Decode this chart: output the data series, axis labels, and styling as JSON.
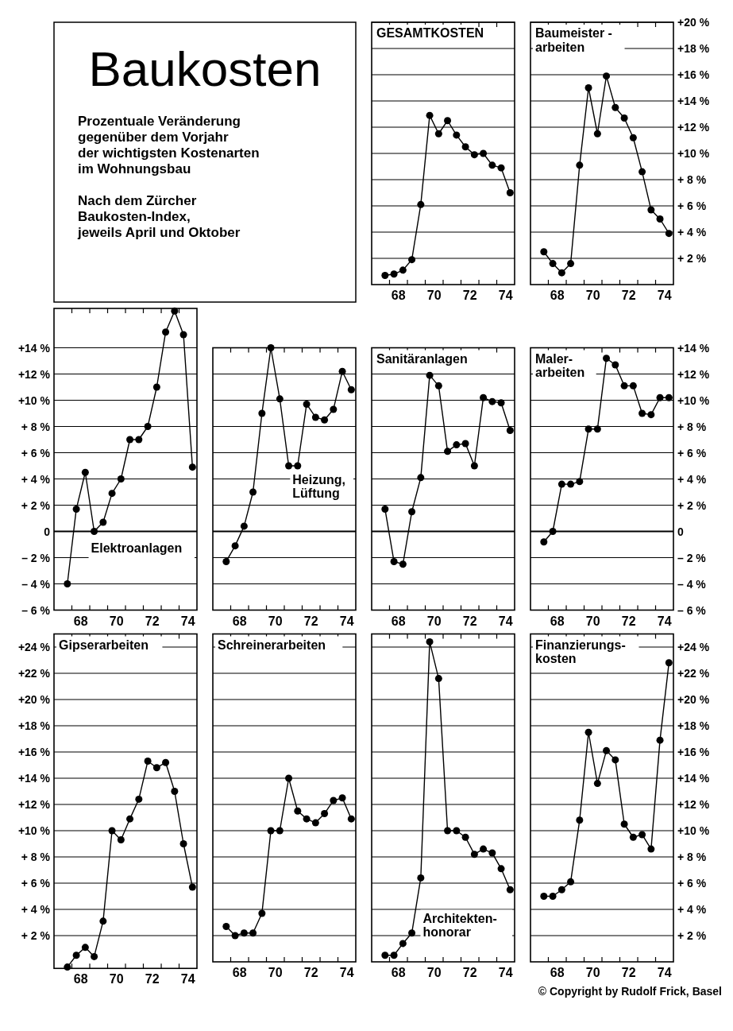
{
  "chart_data": [
    {
      "type": "other",
      "title": "Baukosten",
      "subtitle": "Prozentuale Veränderung\ngegenüber dem Vorjahr\nder wichtigsten Kostenarten\nim Wohnungsbau",
      "annotations": [
        "Nach dem Zürcher\nBaukosten-Index,\njeweils April und Oktober"
      ]
    },
    {
      "type": "line",
      "title": "GESAMTKOSTEN",
      "marker": "circle",
      "grid": "y",
      "tick_labels": "x",
      "x": [
        "1967-10",
        "1968-04",
        "1968-10",
        "1969-04",
        "1969-10",
        "1970-04",
        "1970-10",
        "1971-04",
        "1971-10",
        "1972-04",
        "1972-10",
        "1973-04",
        "1973-10",
        "1974-04",
        "1974-10"
      ],
      "xlim": [
        "1967",
        "1975"
      ],
      "xticks": [
        {
          "value": "1968",
          "label": null
        },
        {
          "value": "1968-07",
          "label": "68"
        },
        {
          "value": "1969",
          "label": null
        },
        {
          "value": "1970",
          "label": null
        },
        {
          "value": "1970-07",
          "label": "70"
        },
        {
          "value": "1971",
          "label": null
        },
        {
          "value": "1972",
          "label": null
        },
        {
          "value": "1972-07",
          "label": "72"
        },
        {
          "value": "1973",
          "label": null
        },
        {
          "value": "1974",
          "label": null
        },
        {
          "value": "1974-07",
          "label": "74"
        }
      ],
      "ylim": [
        0,
        20
      ],
      "yticks": [
        2,
        4,
        6,
        8,
        10,
        12,
        14,
        16,
        18,
        20
      ],
      "series": [
        {
          "color": "#000000",
          "values": [
            0.7,
            0.8,
            1.1,
            1.9,
            6.1,
            12.9,
            11.5,
            12.5,
            11.4,
            10.5,
            9.9,
            10.0,
            9.1,
            8.9,
            7.0
          ]
        }
      ]
    },
    {
      "type": "line",
      "title": "Baumeister -\narbeiten",
      "marker": "circle",
      "grid": "y",
      "x": [
        "1967-10",
        "1968-04",
        "1968-10",
        "1969-04",
        "1969-10",
        "1970-04",
        "1970-10",
        "1971-04",
        "1971-10",
        "1972-04",
        "1972-10",
        "1973-04",
        "1973-10",
        "1974-04",
        "1974-10"
      ],
      "xlim": [
        "1967",
        "1975"
      ],
      "xticks": [
        {
          "value": "1968",
          "label": null
        },
        {
          "value": "1968-07",
          "label": "68"
        },
        {
          "value": "1969",
          "label": null
        },
        {
          "value": "1970",
          "label": null
        },
        {
          "value": "1970-07",
          "label": "70"
        },
        {
          "value": "1971",
          "label": null
        },
        {
          "value": "1972",
          "label": null
        },
        {
          "value": "1972-07",
          "label": "72"
        },
        {
          "value": "1973",
          "label": null
        },
        {
          "value": "1974",
          "label": null
        },
        {
          "value": "1974-07",
          "label": "74"
        }
      ],
      "ylim": [
        0,
        20
      ],
      "yticks": [
        {
          "value": 2,
          "label": "+ 2 %"
        },
        {
          "value": 4,
          "label": "+ 4 %"
        },
        {
          "value": 6,
          "label": "+ 6 %"
        },
        {
          "value": 8,
          "label": "+ 8 %"
        },
        {
          "value": 10,
          "label": "+10 %"
        },
        {
          "value": 12,
          "label": "+12 %"
        },
        {
          "value": 14,
          "label": "+14 %"
        },
        {
          "value": 16,
          "label": "+16 %"
        },
        {
          "value": 18,
          "label": "+18 %"
        },
        {
          "value": 20,
          "label": "+20 %"
        }
      ],
      "series": [
        {
          "color": "#000000",
          "values": [
            2.5,
            1.6,
            0.9,
            1.6,
            9.1,
            15.0,
            11.5,
            15.9,
            13.5,
            12.7,
            11.2,
            8.6,
            5.7,
            5.0,
            3.9
          ]
        }
      ]
    },
    {
      "type": "line",
      "title": "Elektroanlagen",
      "marker": "circle",
      "grid": "y",
      "x": [
        "1967-10",
        "1968-04",
        "1968-10",
        "1969-04",
        "1969-10",
        "1970-04",
        "1970-10",
        "1971-04",
        "1971-10",
        "1972-04",
        "1972-10",
        "1973-04",
        "1973-10",
        "1974-04",
        "1974-10"
      ],
      "xlim": [
        "1967",
        "1975"
      ],
      "xticks": [
        {
          "value": "1968",
          "label": null
        },
        {
          "value": "1968-07",
          "label": "68"
        },
        {
          "value": "1969",
          "label": null
        },
        {
          "value": "1970",
          "label": null
        },
        {
          "value": "1970-07",
          "label": "70"
        },
        {
          "value": "1971",
          "label": null
        },
        {
          "value": "1972",
          "label": null
        },
        {
          "value": "1972-07",
          "label": "72"
        },
        {
          "value": "1973",
          "label": null
        },
        {
          "value": "1974",
          "label": null
        },
        {
          "value": "1974-07",
          "label": "74"
        }
      ],
      "ylim": [
        -6,
        17
      ],
      "yticks": [
        {
          "value": -6,
          "label": "– 6 %"
        },
        {
          "value": -4,
          "label": "– 4 %"
        },
        {
          "value": -2,
          "label": "– 2 %"
        },
        0,
        {
          "value": 2,
          "label": "+ 2 %"
        },
        {
          "value": 4,
          "label": "+ 4 %"
        },
        {
          "value": 6,
          "label": "+ 6 %"
        },
        {
          "value": 8,
          "label": "+ 8 %"
        },
        {
          "value": 10,
          "label": "+10 %"
        },
        {
          "value": 12,
          "label": "+12 %"
        },
        {
          "value": 14,
          "label": "+14 %"
        }
      ],
      "series": [
        {
          "color": "#000000",
          "values": [
            -4.0,
            1.7,
            4.5,
            0.0,
            0.7,
            2.9,
            4.0,
            7.0,
            7.0,
            8.0,
            11.0,
            15.2,
            16.8,
            15.0,
            4.9
          ]
        }
      ]
    },
    {
      "type": "line",
      "title": "Heizung,\nLüftung",
      "marker": "circle",
      "grid": "y",
      "tick_labels": "x",
      "x": [
        "1967-10",
        "1968-04",
        "1968-10",
        "1969-04",
        "1969-10",
        "1970-04",
        "1970-10",
        "1971-04",
        "1971-10",
        "1972-04",
        "1972-10",
        "1973-04",
        "1973-10",
        "1974-04",
        "1974-10"
      ],
      "xlim": [
        "1967",
        "1975"
      ],
      "xticks": [
        {
          "value": "1968",
          "label": null
        },
        {
          "value": "1968-07",
          "label": "68"
        },
        {
          "value": "1969",
          "label": null
        },
        {
          "value": "1970",
          "label": null
        },
        {
          "value": "1970-07",
          "label": "70"
        },
        {
          "value": "1971",
          "label": null
        },
        {
          "value": "1972",
          "label": null
        },
        {
          "value": "1972-07",
          "label": "72"
        },
        {
          "value": "1973",
          "label": null
        },
        {
          "value": "1974",
          "label": null
        },
        {
          "value": "1974-07",
          "label": "74"
        }
      ],
      "ylim": [
        -6,
        14
      ],
      "yticks": [
        -6,
        -4,
        -2,
        0,
        2,
        4,
        6,
        8,
        10,
        12,
        14
      ],
      "series": [
        {
          "color": "#000000",
          "values": [
            -2.3,
            -1.1,
            0.4,
            3.0,
            9.0,
            14.0,
            10.1,
            5.0,
            5.0,
            9.7,
            8.7,
            8.5,
            9.3,
            12.2,
            10.8
          ]
        }
      ]
    },
    {
      "type": "line",
      "title": "Sanitäranlagen",
      "marker": "circle",
      "grid": "y",
      "tick_labels": "x",
      "x": [
        "1967-10",
        "1968-04",
        "1968-10",
        "1969-04",
        "1969-10",
        "1970-04",
        "1970-10",
        "1971-04",
        "1971-10",
        "1972-04",
        "1972-10",
        "1973-04",
        "1973-10",
        "1974-04",
        "1974-10"
      ],
      "xlim": [
        "1967",
        "1975"
      ],
      "xticks": [
        {
          "value": "1968",
          "label": null
        },
        {
          "value": "1968-07",
          "label": "68"
        },
        {
          "value": "1969",
          "label": null
        },
        {
          "value": "1970",
          "label": null
        },
        {
          "value": "1970-07",
          "label": "70"
        },
        {
          "value": "1971",
          "label": null
        },
        {
          "value": "1972",
          "label": null
        },
        {
          "value": "1972-07",
          "label": "72"
        },
        {
          "value": "1973",
          "label": null
        },
        {
          "value": "1974",
          "label": null
        },
        {
          "value": "1974-07",
          "label": "74"
        }
      ],
      "ylim": [
        -6,
        14
      ],
      "yticks": [
        -6,
        -4,
        -2,
        0,
        2,
        4,
        6,
        8,
        10,
        12,
        14
      ],
      "series": [
        {
          "color": "#000000",
          "values": [
            1.7,
            -2.3,
            -2.5,
            1.5,
            4.1,
            11.9,
            11.1,
            6.1,
            6.6,
            6.7,
            5.0,
            10.2,
            9.9,
            9.8,
            7.7
          ]
        }
      ]
    },
    {
      "type": "line",
      "title": "Maler-\narbeiten",
      "marker": "circle",
      "grid": "y",
      "x": [
        "1967-10",
        "1968-04",
        "1968-10",
        "1969-04",
        "1969-10",
        "1970-04",
        "1970-10",
        "1971-04",
        "1971-10",
        "1972-04",
        "1972-10",
        "1973-04",
        "1973-10",
        "1974-04",
        "1974-10"
      ],
      "xlim": [
        "1967",
        "1975"
      ],
      "xticks": [
        {
          "value": "1968",
          "label": null
        },
        {
          "value": "1968-07",
          "label": "68"
        },
        {
          "value": "1969",
          "label": null
        },
        {
          "value": "1970",
          "label": null
        },
        {
          "value": "1970-07",
          "label": "70"
        },
        {
          "value": "1971",
          "label": null
        },
        {
          "value": "1972",
          "label": null
        },
        {
          "value": "1972-07",
          "label": "72"
        },
        {
          "value": "1973",
          "label": null
        },
        {
          "value": "1974",
          "label": null
        },
        {
          "value": "1974-07",
          "label": "74"
        }
      ],
      "ylim": [
        -6,
        14
      ],
      "yticks": [
        {
          "value": -6,
          "label": "– 6 %"
        },
        {
          "value": -4,
          "label": "– 4 %"
        },
        {
          "value": -2,
          "label": "– 2 %"
        },
        0,
        {
          "value": 2,
          "label": "+ 2 %"
        },
        {
          "value": 4,
          "label": "+ 4 %"
        },
        {
          "value": 6,
          "label": "+ 6 %"
        },
        {
          "value": 8,
          "label": "+ 8 %"
        },
        {
          "value": 10,
          "label": "+10 %"
        },
        {
          "value": 12,
          "label": "+12 %"
        },
        {
          "value": 14,
          "label": "+14 %"
        }
      ],
      "series": [
        {
          "color": "#000000",
          "values": [
            -0.8,
            0.0,
            3.6,
            3.6,
            3.8,
            7.8,
            7.8,
            13.2,
            12.7,
            11.1,
            11.1,
            9.0,
            8.9,
            10.2,
            10.2
          ]
        }
      ]
    },
    {
      "type": "line",
      "title": "Gipserarbeiten",
      "marker": "circle",
      "grid": "y",
      "x": [
        "1967-10",
        "1968-04",
        "1968-10",
        "1969-04",
        "1969-10",
        "1970-04",
        "1970-10",
        "1971-04",
        "1971-10",
        "1972-04",
        "1972-10",
        "1973-04",
        "1973-10",
        "1974-04",
        "1974-10"
      ],
      "xlim": [
        "1967",
        "1975"
      ],
      "xticks": [
        {
          "value": "1968",
          "label": null
        },
        {
          "value": "1968-07",
          "label": "68"
        },
        {
          "value": "1969",
          "label": null
        },
        {
          "value": "1970",
          "label": null
        },
        {
          "value": "1970-07",
          "label": "70"
        },
        {
          "value": "1971",
          "label": null
        },
        {
          "value": "1972",
          "label": null
        },
        {
          "value": "1972-07",
          "label": "72"
        },
        {
          "value": "1973",
          "label": null
        },
        {
          "value": "1974",
          "label": null
        },
        {
          "value": "1974-07",
          "label": "74"
        }
      ],
      "ylim": [
        -0.5,
        25
      ],
      "yticks": [
        {
          "value": 2,
          "label": "+ 2 %"
        },
        {
          "value": 4,
          "label": "+ 4 %"
        },
        {
          "value": 6,
          "label": "+ 6 %"
        },
        {
          "value": 8,
          "label": "+ 8 %"
        },
        {
          "value": 10,
          "label": "+10 %"
        },
        {
          "value": 12,
          "label": "+12 %"
        },
        {
          "value": 14,
          "label": "+14 %"
        },
        {
          "value": 16,
          "label": "+16 %"
        },
        {
          "value": 18,
          "label": "+18 %"
        },
        {
          "value": 20,
          "label": "+20 %"
        },
        {
          "value": 22,
          "label": "+22 %"
        },
        {
          "value": 24,
          "label": "+24 %"
        }
      ],
      "series": [
        {
          "color": "#000000",
          "values": [
            -0.4,
            0.5,
            1.1,
            0.4,
            3.1,
            10.0,
            9.3,
            10.9,
            12.4,
            15.3,
            14.8,
            15.2,
            13.0,
            9.0,
            5.7
          ]
        }
      ]
    },
    {
      "type": "line",
      "title": "Schreinerarbeiten",
      "marker": "circle",
      "grid": "y",
      "tick_labels": "x",
      "x": [
        "1967-10",
        "1968-04",
        "1968-10",
        "1969-04",
        "1969-10",
        "1970-04",
        "1970-10",
        "1971-04",
        "1971-10",
        "1972-04",
        "1972-10",
        "1973-04",
        "1973-10",
        "1974-04",
        "1974-10"
      ],
      "xlim": [
        "1967",
        "1975"
      ],
      "xticks": [
        {
          "value": "1968",
          "label": null
        },
        {
          "value": "1968-07",
          "label": "68"
        },
        {
          "value": "1969",
          "label": null
        },
        {
          "value": "1970",
          "label": null
        },
        {
          "value": "1970-07",
          "label": "70"
        },
        {
          "value": "1971",
          "label": null
        },
        {
          "value": "1972",
          "label": null
        },
        {
          "value": "1972-07",
          "label": "72"
        },
        {
          "value": "1973",
          "label": null
        },
        {
          "value": "1974",
          "label": null
        },
        {
          "value": "1974-07",
          "label": "74"
        }
      ],
      "ylim": [
        0,
        25
      ],
      "yticks": [
        2,
        4,
        6,
        8,
        10,
        12,
        14,
        16,
        18,
        20,
        22,
        24
      ],
      "series": [
        {
          "color": "#000000",
          "values": [
            2.7,
            2.0,
            2.2,
            2.2,
            3.7,
            10.0,
            10.0,
            14.0,
            11.5,
            10.9,
            10.6,
            11.3,
            12.3,
            12.5,
            10.9
          ]
        }
      ]
    },
    {
      "type": "line",
      "title": "Architekten-\nhonorar",
      "marker": "circle",
      "grid": "y",
      "tick_labels": "x",
      "x": [
        "1967-10",
        "1968-04",
        "1968-10",
        "1969-04",
        "1969-10",
        "1970-04",
        "1970-10",
        "1971-04",
        "1971-10",
        "1972-04",
        "1972-10",
        "1973-04",
        "1973-10",
        "1974-04",
        "1974-10"
      ],
      "xlim": [
        "1967",
        "1975"
      ],
      "xticks": [
        {
          "value": "1968",
          "label": null
        },
        {
          "value": "1968-07",
          "label": "68"
        },
        {
          "value": "1969",
          "label": null
        },
        {
          "value": "1970",
          "label": null
        },
        {
          "value": "1970-07",
          "label": "70"
        },
        {
          "value": "1971",
          "label": null
        },
        {
          "value": "1972",
          "label": null
        },
        {
          "value": "1972-07",
          "label": "72"
        },
        {
          "value": "1973",
          "label": null
        },
        {
          "value": "1974",
          "label": null
        },
        {
          "value": "1974-07",
          "label": "74"
        }
      ],
      "ylim": [
        0,
        25
      ],
      "yticks": [
        2,
        4,
        6,
        8,
        10,
        12,
        14,
        16,
        18,
        20,
        22,
        24
      ],
      "series": [
        {
          "color": "#000000",
          "values": [
            0.5,
            0.5,
            1.4,
            2.2,
            6.4,
            24.4,
            21.6,
            10.0,
            10.0,
            9.5,
            8.2,
            8.6,
            8.3,
            7.1,
            5.5
          ]
        }
      ]
    },
    {
      "type": "line",
      "title": "Finanzierungs-\nkosten",
      "marker": "circle",
      "grid": "y",
      "annotations": [
        "© Copyright by Rudolf Frick, Basel"
      ],
      "x": [
        "1967-10",
        "1968-04",
        "1968-10",
        "1969-04",
        "1969-10",
        "1970-04",
        "1970-10",
        "1971-04",
        "1971-10",
        "1972-04",
        "1972-10",
        "1973-04",
        "1973-10",
        "1974-04",
        "1974-10"
      ],
      "xlim": [
        "1967",
        "1975"
      ],
      "xticks": [
        {
          "value": "1968",
          "label": null
        },
        {
          "value": "1968-07",
          "label": "68"
        },
        {
          "value": "1969",
          "label": null
        },
        {
          "value": "1970",
          "label": null
        },
        {
          "value": "1970-07",
          "label": "70"
        },
        {
          "value": "1971",
          "label": null
        },
        {
          "value": "1972",
          "label": null
        },
        {
          "value": "1972-07",
          "label": "72"
        },
        {
          "value": "1973",
          "label": null
        },
        {
          "value": "1974",
          "label": null
        },
        {
          "value": "1974-07",
          "label": "74"
        }
      ],
      "ylim": [
        0,
        25
      ],
      "yticks": [
        {
          "value": 2,
          "label": "+ 2 %"
        },
        {
          "value": 4,
          "label": "+ 4 %"
        },
        {
          "value": 6,
          "label": "+ 6 %"
        },
        {
          "value": 8,
          "label": "+ 8 %"
        },
        {
          "value": 10,
          "label": "+10 %"
        },
        {
          "value": 12,
          "label": "+12 %"
        },
        {
          "value": 14,
          "label": "+14 %"
        },
        {
          "value": 16,
          "label": "+16 %"
        },
        {
          "value": 18,
          "label": "+18 %"
        },
        {
          "value": 20,
          "label": "+20 %"
        },
        {
          "value": 22,
          "label": "+22 %"
        },
        {
          "value": 24,
          "label": "+24 %"
        }
      ],
      "series": [
        {
          "color": "#000000",
          "values": [
            5.0,
            5.0,
            5.5,
            6.1,
            10.8,
            17.5,
            13.6,
            16.1,
            15.4,
            10.5,
            9.5,
            9.7,
            8.6,
            16.9,
            22.8
          ]
        }
      ]
    }
  ]
}
